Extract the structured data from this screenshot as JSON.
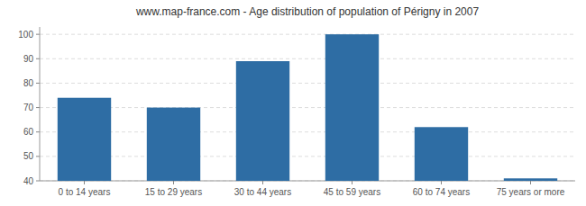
{
  "chart_data": {
    "type": "bar",
    "title": "www.map-france.com - Age distribution of population of Périgny in 2007",
    "categories": [
      "0 to 14 years",
      "15 to 29 years",
      "30 to 44 years",
      "45 to 59 years",
      "60 to 74 years",
      "75 years or more"
    ],
    "values": [
      74,
      70,
      89,
      100,
      62,
      41
    ],
    "color": "#2e6da4",
    "ylim": [
      40,
      103
    ],
    "yticks": [
      40,
      50,
      60,
      70,
      80,
      90,
      100
    ],
    "grid": true
  }
}
